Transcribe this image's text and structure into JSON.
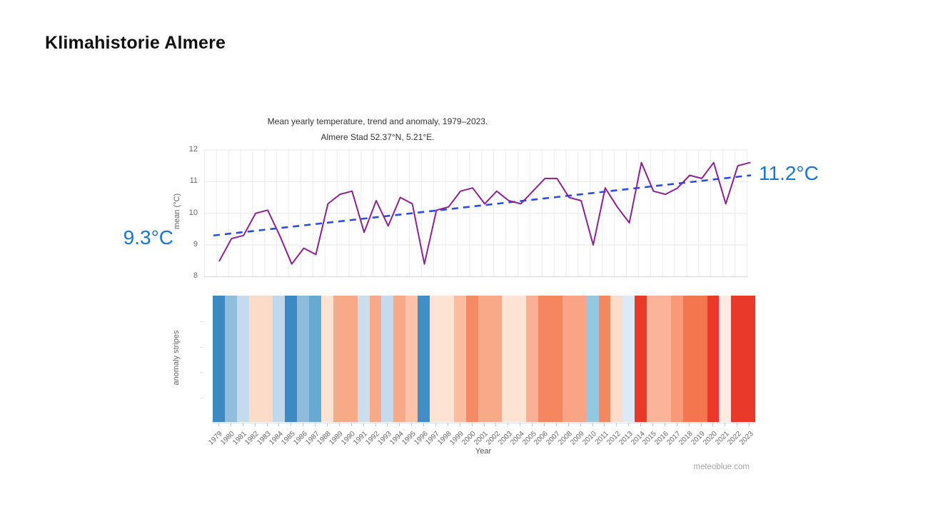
{
  "page": {
    "title": "Klimahistorie Almere",
    "watermark": "meteoblue.com"
  },
  "chart_data": {
    "type": "line",
    "title": "Mean yearly temperature, trend and anomaly, 1979–2023.",
    "subtitle": "Almere Stad 52.37°N, 5.21°E.",
    "xlabel": "Year",
    "ylabel": "mean (°C)",
    "stripes_label": "anomaly stripes",
    "ylim": [
      8,
      12
    ],
    "yticks": [
      12,
      11,
      10,
      9,
      8
    ],
    "grid": true,
    "legend": "none",
    "x": [
      "1979",
      "1980",
      "1981",
      "1982",
      "1983",
      "1984",
      "1985",
      "1986",
      "1987",
      "1988",
      "1989",
      "1990",
      "1991",
      "1992",
      "1993",
      "1994",
      "1995",
      "1996",
      "1997",
      "1998",
      "1999",
      "2000",
      "2001",
      "2002",
      "2003",
      "2004",
      "2005",
      "2006",
      "2007",
      "2008",
      "2009",
      "2010",
      "2011",
      "2012",
      "2013",
      "2014",
      "2015",
      "2016",
      "2017",
      "2018",
      "2019",
      "2020",
      "2021",
      "2022",
      "2023"
    ],
    "series": [
      {
        "name": "mean yearly temperature (°C)",
        "color": "#8c2190",
        "values": [
          8.5,
          9.2,
          9.3,
          10.0,
          10.1,
          9.3,
          8.4,
          8.9,
          8.7,
          10.3,
          10.6,
          10.7,
          9.4,
          10.4,
          9.6,
          10.5,
          10.3,
          8.4,
          10.1,
          10.2,
          10.7,
          10.8,
          10.3,
          10.7,
          10.4,
          10.3,
          10.7,
          11.1,
          11.1,
          10.5,
          10.4,
          9.0,
          10.8,
          10.2,
          9.7,
          11.6,
          10.7,
          10.6,
          10.8,
          11.2,
          11.1,
          11.6,
          10.3,
          11.5,
          11.6
        ]
      }
    ],
    "trend": {
      "start_value": 9.3,
      "end_value": 11.2,
      "label_start": "9.3°C",
      "label_end": "11.2°C",
      "line_color": "#2a4de0",
      "label_color": "#1976d2"
    },
    "stripes": {
      "colors": [
        "#3d89c3",
        "#92bedd",
        "#c6daed",
        "#fcdcc8",
        "#fcdcc8",
        "#c0d8ec",
        "#3d89c3",
        "#8fbcdb",
        "#66a9d3",
        "#fde3d3",
        "#f8a988",
        "#f8a988",
        "#cbdef0",
        "#f8a988",
        "#c6daee",
        "#f8a988",
        "#fcc3a9",
        "#3f8fc8",
        "#fde3d3",
        "#fde3d3",
        "#fbbda1",
        "#f58a64",
        "#f8a988",
        "#f8a988",
        "#fde3d3",
        "#fde3d3",
        "#fbb096",
        "#f58660",
        "#f58660",
        "#f9a484",
        "#f9a484",
        "#97c6e1",
        "#f58660",
        "#fcdccb",
        "#dceaf6",
        "#e8392b",
        "#fbb49a",
        "#fbb49a",
        "#f89a77",
        "#f4764f",
        "#f4764f",
        "#e8392b",
        "#fdeae2",
        "#e8392b",
        "#e8392b"
      ]
    }
  }
}
